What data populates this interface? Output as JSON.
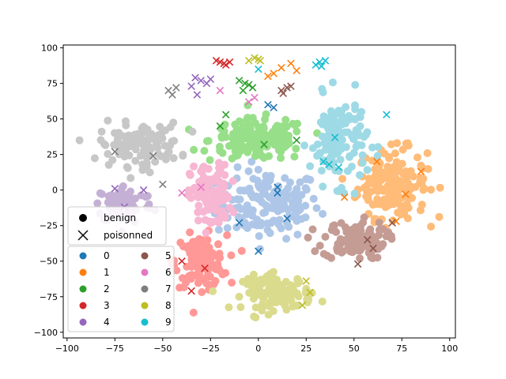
{
  "chart_data": {
    "type": "scatter",
    "title": "",
    "xlabel": "",
    "ylabel": "",
    "xlim": [
      -102,
      103
    ],
    "ylim": [
      -104,
      102
    ],
    "xticks": [
      -100,
      -75,
      -50,
      -25,
      0,
      25,
      50,
      75,
      100
    ],
    "yticks": [
      -100,
      -75,
      -50,
      -25,
      0,
      25,
      50,
      75,
      100
    ],
    "grid": false,
    "legend_markers": [
      {
        "label": "benign",
        "marker": "circle"
      },
      {
        "label": "poisonned",
        "marker": "x"
      }
    ],
    "legend_classes": [
      {
        "label": "0",
        "color": "#1f77b4"
      },
      {
        "label": "1",
        "color": "#ff7f0e"
      },
      {
        "label": "2",
        "color": "#2ca02c"
      },
      {
        "label": "3",
        "color": "#d62728"
      },
      {
        "label": "4",
        "color": "#9467bd"
      },
      {
        "label": "5",
        "color": "#8c564b"
      },
      {
        "label": "6",
        "color": "#e377c2"
      },
      {
        "label": "7",
        "color": "#7f7f7f"
      },
      {
        "label": "8",
        "color": "#bcbd22"
      },
      {
        "label": "9",
        "color": "#17becf"
      }
    ],
    "series": [
      {
        "class": "0",
        "kind": "benign",
        "color": "#aec7e8",
        "cx": 5,
        "cy": -10,
        "sx": 18,
        "sy": 16,
        "n": 150
      },
      {
        "class": "1",
        "kind": "benign",
        "color": "#ffbb78",
        "cx": 70,
        "cy": 5,
        "sx": 12,
        "sy": 16,
        "n": 170
      },
      {
        "class": "2",
        "kind": "benign",
        "color": "#98df8a",
        "cx": 0,
        "cy": 35,
        "sx": 17,
        "sy": 10,
        "n": 160
      },
      {
        "class": "3",
        "kind": "benign",
        "color": "#ff9896",
        "cx": -30,
        "cy": -50,
        "sx": 9,
        "sy": 12,
        "n": 120
      },
      {
        "class": "4",
        "kind": "benign",
        "color": "#c5b0d5",
        "cx": -70,
        "cy": -10,
        "sx": 10,
        "sy": 9,
        "n": 80
      },
      {
        "class": "5",
        "kind": "benign",
        "color": "#c49c94",
        "cx": 50,
        "cy": -35,
        "sx": 11,
        "sy": 9,
        "n": 110
      },
      {
        "class": "6",
        "kind": "benign",
        "color": "#f7b6d2",
        "cx": -25,
        "cy": -5,
        "sx": 7,
        "sy": 15,
        "n": 110
      },
      {
        "class": "7",
        "kind": "benign",
        "color": "#c7c7c7",
        "cx": -62,
        "cy": 32,
        "sx": 14,
        "sy": 10,
        "n": 120
      },
      {
        "class": "8",
        "kind": "benign",
        "color": "#dbdb8d",
        "cx": 10,
        "cy": -72,
        "sx": 12,
        "sy": 8,
        "n": 120
      },
      {
        "class": "9",
        "kind": "benign",
        "color": "#9edae5",
        "cx": 42,
        "cy": 35,
        "sx": 10,
        "sy": 20,
        "n": 130
      }
    ],
    "poisoned_points": [
      {
        "class": "0",
        "color": "#1f77b4",
        "x": [
          5,
          8,
          10,
          10,
          15,
          0,
          -10
        ],
        "y": [
          60,
          58,
          2,
          -2,
          -20,
          -43,
          -23
        ]
      },
      {
        "class": "1",
        "color": "#ff7f0e",
        "x": [
          5,
          8,
          12,
          17,
          20,
          62,
          85,
          77,
          72,
          45
        ],
        "y": [
          80,
          82,
          86,
          89,
          84,
          20,
          13,
          -3,
          -22,
          -5
        ]
      },
      {
        "class": "2",
        "color": "#2ca02c",
        "x": [
          -10,
          -7,
          -3,
          -8,
          -5,
          -20,
          -17,
          3,
          20
        ],
        "y": [
          77,
          75,
          72,
          70,
          74,
          45,
          53,
          32,
          35
        ]
      },
      {
        "class": "3",
        "color": "#d62728",
        "x": [
          -22,
          -20,
          -18,
          -15,
          -17,
          -40,
          -28,
          -35
        ],
        "y": [
          91,
          90,
          89,
          90,
          88,
          -50,
          -55,
          -71
        ]
      },
      {
        "class": "4",
        "color": "#9467bd",
        "x": [
          -33,
          -30,
          -27,
          -35,
          -32,
          -25,
          -75,
          -60,
          -70
        ],
        "y": [
          79,
          77,
          75,
          73,
          67,
          78,
          1,
          0,
          -12
        ]
      },
      {
        "class": "5",
        "color": "#8c564b",
        "x": [
          12,
          15,
          13,
          17,
          52,
          57,
          60,
          70
        ],
        "y": [
          70,
          72,
          68,
          73,
          -52,
          -35,
          -41,
          -23
        ]
      },
      {
        "class": "6",
        "color": "#e377c2",
        "x": [
          -5,
          -2,
          -20,
          -40,
          -30
        ],
        "y": [
          62,
          65,
          70,
          -2,
          2
        ]
      },
      {
        "class": "7",
        "color": "#7f7f7f",
        "x": [
          -45,
          -47,
          -43,
          -75,
          -55,
          -50
        ],
        "y": [
          67,
          70,
          72,
          27,
          24,
          4
        ]
      },
      {
        "class": "8",
        "color": "#bcbd22",
        "x": [
          -5,
          -2,
          0,
          1,
          25,
          27,
          23
        ],
        "y": [
          91,
          93,
          92,
          91,
          -64,
          -72,
          -81
        ]
      },
      {
        "class": "9",
        "color": "#17becf",
        "x": [
          30,
          32,
          35,
          33,
          0,
          40,
          42,
          37,
          34,
          67
        ],
        "y": [
          88,
          90,
          91,
          87,
          85,
          37,
          16,
          18,
          20,
          53
        ]
      }
    ]
  }
}
